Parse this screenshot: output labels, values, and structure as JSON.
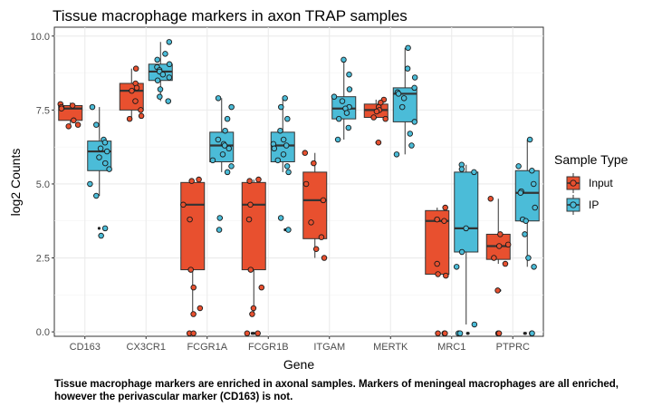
{
  "chart_data": {
    "type": "boxplot",
    "title": "Tissue macrophage markers in axon TRAP samples",
    "xlabel": "Gene",
    "ylabel": "log2 Counts",
    "ylim": [
      -0.15,
      10.3
    ],
    "yticks": [
      0.0,
      2.5,
      5.0,
      7.5,
      10.0
    ],
    "ytick_labels": [
      "0.0",
      "2.5",
      "5.0",
      "7.5",
      "10.0"
    ],
    "categories": [
      "CD163",
      "CX3CR1",
      "FCGR1A",
      "FCGR1B",
      "ITGAM",
      "MERTK",
      "MRC1",
      "PTPRC"
    ],
    "grid": true,
    "legend_position": "right",
    "legend": {
      "title": "Sample Type",
      "entries": [
        "Input",
        "IP"
      ]
    },
    "colors": {
      "Input": "#e8502f",
      "IP": "#4bbcd8"
    },
    "series": [
      {
        "name": "Input",
        "boxes": [
          {
            "category": "CD163",
            "whisker_low": 6.95,
            "q1": 7.15,
            "median": 7.55,
            "q3": 7.65,
            "whisker_high": 7.75,
            "points": [
              7.7,
              7.65,
              7.6,
              7.55,
              7.15,
              7.0,
              6.95
            ],
            "outliers": []
          },
          {
            "category": "CX3CR1",
            "whisker_low": 7.2,
            "q1": 7.5,
            "median": 8.15,
            "q3": 8.4,
            "whisker_high": 8.9,
            "points": [
              8.9,
              8.4,
              8.25,
              8.15,
              7.8,
              7.5,
              7.3,
              7.2
            ],
            "outliers": []
          },
          {
            "category": "FCGR1A",
            "whisker_low": 0.6,
            "q1": 2.1,
            "median": 4.3,
            "q3": 5.05,
            "whisker_high": 5.15,
            "points": [
              5.15,
              5.1,
              4.3,
              3.8,
              2.1,
              1.5,
              0.8,
              0.6
            ],
            "outliers": [
              -0.05,
              -0.05
            ]
          },
          {
            "category": "FCGR1B",
            "whisker_low": 0.6,
            "q1": 2.1,
            "median": 4.3,
            "q3": 5.05,
            "whisker_high": 5.15,
            "points": [
              5.15,
              5.1,
              4.3,
              3.8,
              2.1,
              1.5,
              0.8,
              0.6
            ],
            "outliers": [
              -0.05,
              -0.05
            ]
          },
          {
            "category": "ITGAM",
            "whisker_low": 2.5,
            "q1": 3.15,
            "median": 4.45,
            "q3": 5.4,
            "whisker_high": 6.05,
            "points": [
              6.05,
              5.7,
              5.0,
              4.45,
              3.7,
              3.2,
              2.8,
              2.5
            ],
            "outliers": []
          },
          {
            "category": "MERTK",
            "whisker_low": 7.2,
            "q1": 7.25,
            "median": 7.5,
            "q3": 7.7,
            "whisker_high": 7.85,
            "points": [
              7.85,
              7.75,
              7.6,
              7.5,
              7.45,
              7.25,
              7.2
            ],
            "outliers": [
              6.4
            ]
          },
          {
            "category": "MRC1",
            "whisker_low": 1.9,
            "q1": 1.95,
            "median": 3.75,
            "q3": 4.1,
            "whisker_high": 4.2,
            "points": [
              4.2,
              3.8,
              3.75,
              2.3,
              1.95,
              1.9
            ],
            "outliers": [
              -0.05,
              -0.05,
              -0.05
            ]
          },
          {
            "category": "PTPRC",
            "whisker_low": 2.3,
            "q1": 2.45,
            "median": 2.9,
            "q3": 3.3,
            "whisker_high": 4.5,
            "points": [
              4.5,
              3.3,
              2.95,
              2.9,
              2.5,
              2.3
            ],
            "outliers": [
              1.4,
              -0.05,
              -0.05
            ]
          }
        ]
      },
      {
        "name": "IP",
        "boxes": [
          {
            "category": "CD163",
            "whisker_low": 4.6,
            "q1": 5.45,
            "median": 6.1,
            "q3": 6.45,
            "whisker_high": 7.6,
            "points": [
              7.6,
              7.0,
              6.5,
              6.4,
              6.2,
              6.1,
              5.9,
              5.7,
              5.5,
              5.0,
              4.6
            ],
            "outliers": [
              3.5,
              3.25
            ]
          },
          {
            "category": "CX3CR1",
            "whisker_low": 7.8,
            "q1": 8.5,
            "median": 8.8,
            "q3": 9.05,
            "whisker_high": 9.8,
            "points": [
              9.8,
              9.4,
              9.2,
              9.05,
              8.95,
              8.85,
              8.8,
              8.7,
              8.6,
              8.5,
              8.2,
              7.95,
              7.8
            ],
            "outliers": []
          },
          {
            "category": "FCGR1A",
            "whisker_low": 5.4,
            "q1": 5.75,
            "median": 6.3,
            "q3": 6.75,
            "whisker_high": 7.9,
            "points": [
              7.9,
              7.6,
              7.2,
              6.8,
              6.5,
              6.35,
              6.3,
              6.2,
              6.0,
              5.8,
              5.6,
              5.4
            ],
            "outliers": [
              3.85,
              3.45
            ]
          },
          {
            "category": "FCGR1B",
            "whisker_low": 5.4,
            "q1": 5.75,
            "median": 6.3,
            "q3": 6.75,
            "whisker_high": 7.9,
            "points": [
              7.9,
              7.6,
              7.2,
              6.8,
              6.5,
              6.35,
              6.3,
              6.2,
              6.0,
              5.8,
              5.6,
              5.4
            ],
            "outliers": [
              3.85,
              3.45
            ]
          },
          {
            "category": "ITGAM",
            "whisker_low": 6.5,
            "q1": 7.2,
            "median": 7.55,
            "q3": 7.95,
            "whisker_high": 9.2,
            "points": [
              9.2,
              8.7,
              8.2,
              7.95,
              7.8,
              7.6,
              7.55,
              7.4,
              7.2,
              6.9,
              6.5
            ],
            "outliers": []
          },
          {
            "category": "MERTK",
            "whisker_low": 6.0,
            "q1": 7.1,
            "median": 8.05,
            "q3": 8.25,
            "whisker_high": 9.6,
            "points": [
              9.6,
              8.9,
              8.6,
              8.25,
              8.1,
              8.05,
              7.9,
              7.6,
              7.1,
              6.7,
              6.3,
              6.0
            ],
            "outliers": []
          },
          {
            "category": "MRC1",
            "whisker_low": 0.25,
            "q1": 2.7,
            "median": 3.5,
            "q3": 5.4,
            "whisker_high": 5.65,
            "points": [
              5.65,
              5.5,
              5.4,
              3.5,
              2.7,
              2.2,
              0.25
            ],
            "outliers": [
              -0.05,
              -0.05
            ]
          },
          {
            "category": "PTPRC",
            "whisker_low": 2.2,
            "q1": 3.75,
            "median": 4.7,
            "q3": 5.45,
            "whisker_high": 6.5,
            "points": [
              6.5,
              5.6,
              5.45,
              5.0,
              4.75,
              4.7,
              4.2,
              3.8,
              3.75,
              3.3,
              2.5,
              2.2
            ],
            "outliers": [
              -0.05,
              -0.05
            ]
          }
        ]
      }
    ]
  },
  "caption": "Tissue macrophage markers are enriched in axonal samples. Markers of meningeal macrophages are all enriched, however the perivascular marker (CD163) is not."
}
